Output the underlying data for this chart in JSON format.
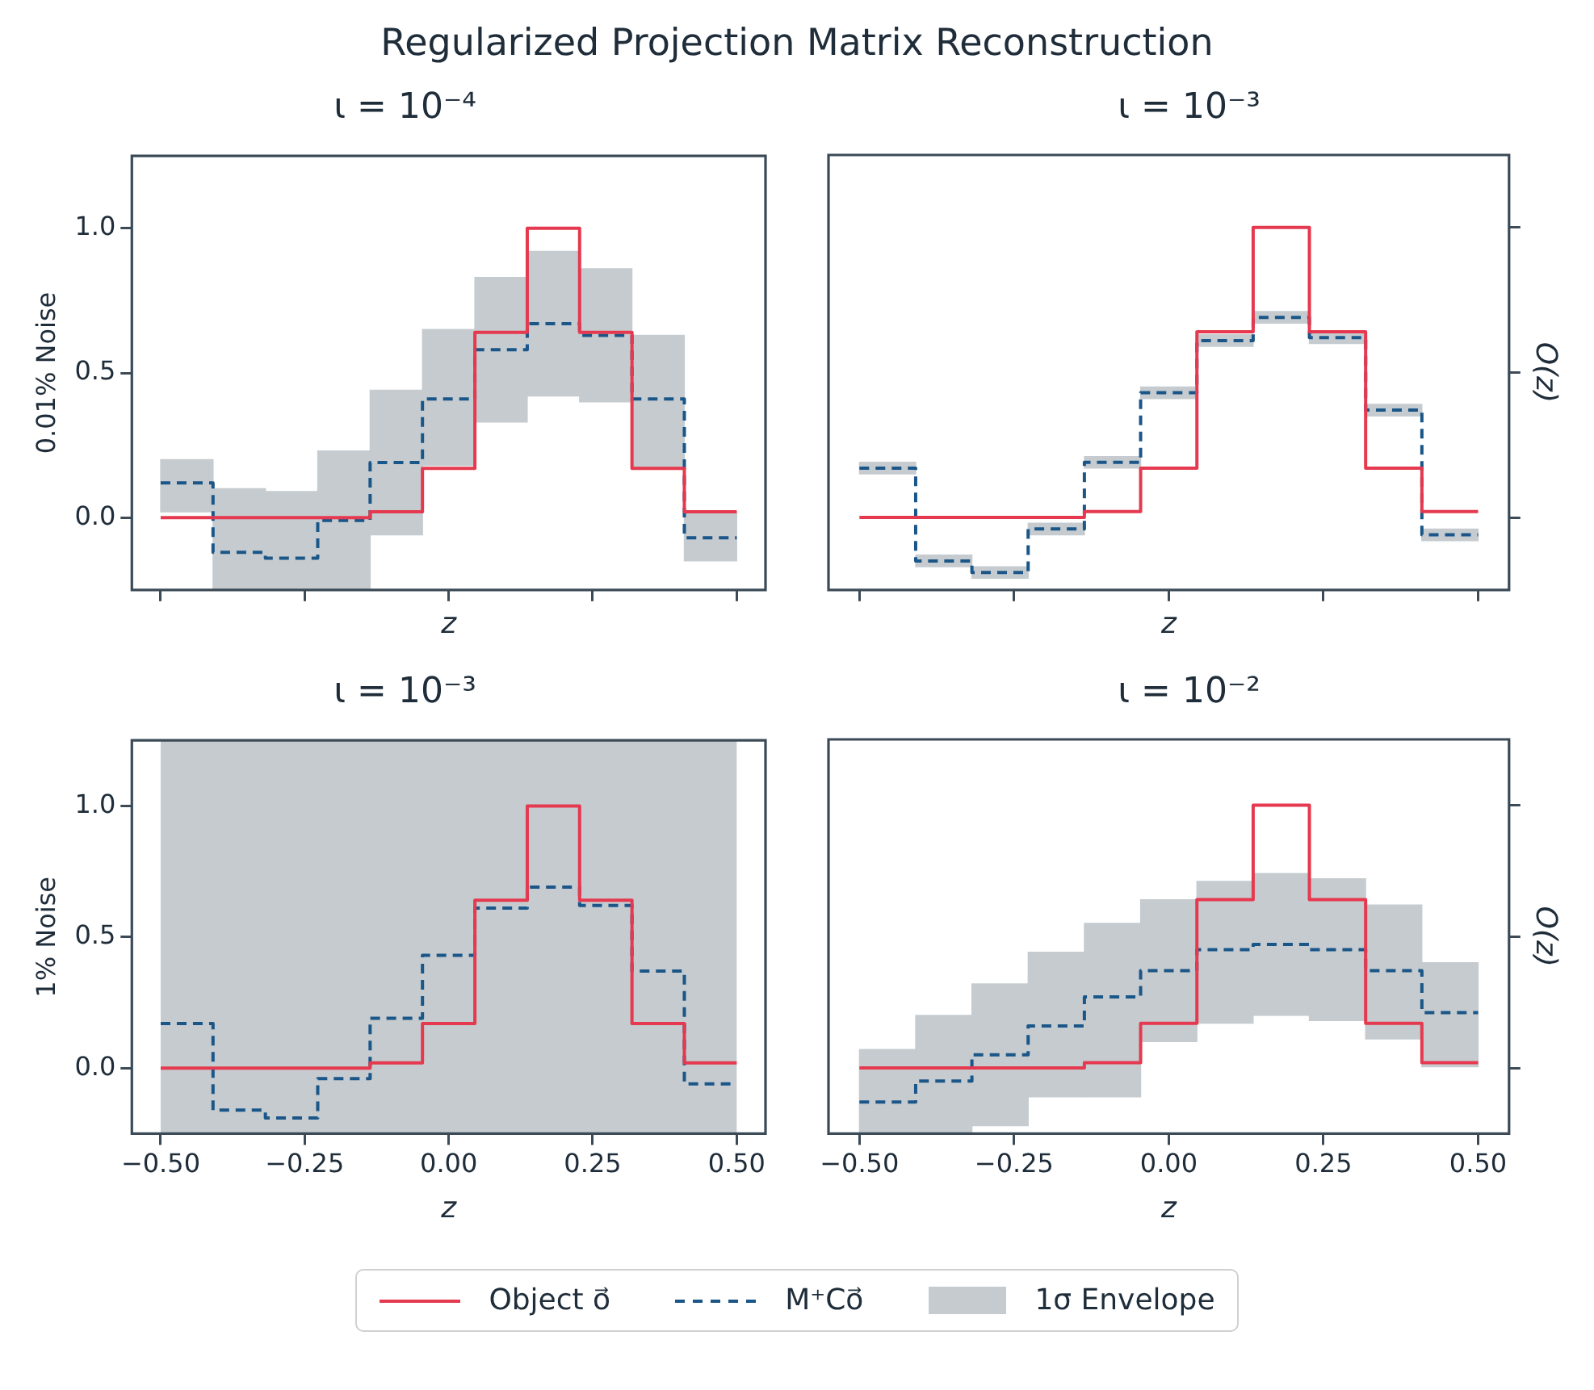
{
  "chart_data": [
    {
      "type": "histogram",
      "title": "ι = 10⁻⁴",
      "xlabel": "z",
      "ylabel": "0.01% Noise",
      "annotations": [
        "Regularized Projection Matrix Reconstruction"
      ],
      "tick_labels": "y",
      "grid": false,
      "bins": [
        -0.5,
        -0.4091,
        -0.3182,
        -0.2273,
        -0.1364,
        -0.0455,
        0.0455,
        0.1364,
        0.2273,
        0.3182,
        0.4091,
        0.5
      ],
      "xlim": [
        -0.55,
        0.55
      ],
      "xticks": [
        {
          "value": -0.5,
          "label": null
        },
        {
          "value": -0.25,
          "label": null
        },
        {
          "value": 0,
          "label": null
        },
        {
          "value": 0.25,
          "label": null
        },
        {
          "value": 0.5,
          "label": null
        }
      ],
      "ylim": [
        -0.25,
        1.25
      ],
      "yticks": [
        {
          "value": 0,
          "label": "0.0"
        },
        {
          "value": 0.5,
          "label": "0.5"
        },
        {
          "value": 1,
          "label": "1.0"
        }
      ],
      "series": [
        {
          "color": "#e5394f",
          "line_style": "solid",
          "values": [
            0,
            0,
            0,
            0,
            0.02,
            0.17,
            0.64,
            1.0,
            0.64,
            0.17,
            0.02
          ]
        },
        {
          "color": "#1a5688",
          "line_style": "dashed",
          "values": [
            0.12,
            -0.12,
            -0.14,
            -0.01,
            0.19,
            0.41,
            0.58,
            0.67,
            0.63,
            0.41,
            -0.07
          ]
        },
        {
          "type": "bar",
          "color": "#c5cbcf",
          "x": [
            -0.4545,
            -0.3636,
            -0.2727,
            -0.1818,
            -0.0909,
            0,
            0.0909,
            0.1818,
            0.2727,
            0.3636,
            0.4545
          ],
          "base": [
            0.02,
            -0.25,
            -0.25,
            -0.25,
            -0.06,
            0.18,
            0.33,
            0.42,
            0.4,
            0.17,
            -0.15
          ],
          "values": [
            0.18,
            0.35,
            0.34,
            0.48,
            0.5,
            0.47,
            0.5,
            0.5,
            0.46,
            0.46,
            0.17
          ]
        }
      ]
    },
    {
      "type": "histogram",
      "title": "ι = 10⁻³",
      "xlabel": "z",
      "ylabel": "O(z)",
      "tick_labels": false,
      "grid": false,
      "bins": [
        -0.5,
        -0.4091,
        -0.3182,
        -0.2273,
        -0.1364,
        -0.0455,
        0.0455,
        0.1364,
        0.2273,
        0.3182,
        0.4091,
        0.5
      ],
      "xlim": [
        -0.55,
        0.55
      ],
      "xticks": [
        {
          "value": -0.5,
          "label": null
        },
        {
          "value": -0.25,
          "label": null
        },
        {
          "value": 0,
          "label": null
        },
        {
          "value": 0.25,
          "label": null
        },
        {
          "value": 0.5,
          "label": null
        }
      ],
      "ylim": [
        -0.25,
        1.25
      ],
      "yticks": [
        {
          "value": 0,
          "label": null
        },
        {
          "value": 0.5,
          "label": null
        },
        {
          "value": 1,
          "label": null
        }
      ],
      "series": [
        {
          "color": "#e5394f",
          "line_style": "solid",
          "values": [
            0,
            0,
            0,
            0,
            0.02,
            0.17,
            0.64,
            1.0,
            0.64,
            0.17,
            0.02
          ]
        },
        {
          "color": "#1a5688",
          "line_style": "dashed",
          "values": [
            0.17,
            -0.15,
            -0.19,
            -0.04,
            0.19,
            0.43,
            0.61,
            0.69,
            0.62,
            0.37,
            -0.06
          ]
        },
        {
          "type": "bar",
          "color": "#c5cbcf",
          "x": [
            -0.4545,
            -0.3636,
            -0.2727,
            -0.1818,
            -0.0909,
            0,
            0.0909,
            0.1818,
            0.2727,
            0.3636,
            0.4545
          ],
          "base": [
            0.15,
            -0.17,
            -0.21,
            -0.06,
            0.17,
            0.41,
            0.59,
            0.67,
            0.6,
            0.35,
            -0.08
          ],
          "values": [
            0.04,
            0.04,
            0.04,
            0.04,
            0.04,
            0.04,
            0.04,
            0.04,
            0.04,
            0.04,
            0.04
          ]
        }
      ]
    },
    {
      "type": "histogram",
      "title": "ι = 10⁻³",
      "xlabel": "z",
      "ylabel": "1% Noise",
      "grid": false,
      "bins": [
        -0.5,
        -0.4091,
        -0.3182,
        -0.2273,
        -0.1364,
        -0.0455,
        0.0455,
        0.1364,
        0.2273,
        0.3182,
        0.4091,
        0.5
      ],
      "xlim": [
        -0.55,
        0.55
      ],
      "xticks": [
        {
          "value": -0.5,
          "label": "−0.50"
        },
        {
          "value": -0.25,
          "label": "−0.25"
        },
        {
          "value": 0,
          "label": "0.00"
        },
        {
          "value": 0.25,
          "label": "0.25"
        },
        {
          "value": 0.5,
          "label": "0.50"
        }
      ],
      "ylim": [
        -0.25,
        1.25
      ],
      "yticks": [
        {
          "value": 0,
          "label": "0.0"
        },
        {
          "value": 0.5,
          "label": "0.5"
        },
        {
          "value": 1,
          "label": "1.0"
        }
      ],
      "series": [
        {
          "color": "#e5394f",
          "line_style": "solid",
          "values": [
            0,
            0,
            0,
            0,
            0.02,
            0.17,
            0.64,
            1.0,
            0.64,
            0.17,
            0.02
          ]
        },
        {
          "color": "#1a5688",
          "line_style": "dashed",
          "values": [
            0.17,
            -0.16,
            -0.19,
            -0.04,
            0.19,
            0.43,
            0.61,
            0.69,
            0.62,
            0.37,
            -0.06
          ]
        }
      ],
      "bands": [
        {
          "axis": "x",
          "from": -0.5,
          "to": 0.5,
          "color": "#c5cbcf"
        }
      ]
    },
    {
      "type": "histogram",
      "title": "ι = 10⁻²",
      "xlabel": "z",
      "ylabel": "O(z)",
      "tick_labels": "x",
      "grid": false,
      "legend": "bottom",
      "bins": [
        -0.5,
        -0.4091,
        -0.3182,
        -0.2273,
        -0.1364,
        -0.0455,
        0.0455,
        0.1364,
        0.2273,
        0.3182,
        0.4091,
        0.5
      ],
      "xlim": [
        -0.55,
        0.55
      ],
      "xticks": [
        {
          "value": -0.5,
          "label": "−0.50"
        },
        {
          "value": -0.25,
          "label": "−0.25"
        },
        {
          "value": 0,
          "label": "0.00"
        },
        {
          "value": 0.25,
          "label": "0.25"
        },
        {
          "value": 0.5,
          "label": "0.50"
        }
      ],
      "ylim": [
        -0.25,
        1.25
      ],
      "yticks": [
        {
          "value": 0,
          "label": null
        },
        {
          "value": 0.5,
          "label": null
        },
        {
          "value": 1,
          "label": null
        }
      ],
      "series": [
        {
          "name": "Object o⃗",
          "color": "#e5394f",
          "line_style": "solid",
          "values": [
            0,
            0,
            0,
            0,
            0.02,
            0.17,
            0.64,
            1.0,
            0.64,
            0.17,
            0.02
          ]
        },
        {
          "name": "M⁺Co⃗",
          "color": "#1a5688",
          "line_style": "dashed",
          "values": [
            -0.13,
            -0.05,
            0.05,
            0.16,
            0.27,
            0.37,
            0.45,
            0.47,
            0.45,
            0.37,
            0.21
          ]
        },
        {
          "name": "1σ Envelope",
          "type": "bar",
          "color": "#c5cbcf",
          "x": [
            -0.4545,
            -0.3636,
            -0.2727,
            -0.1818,
            -0.0909,
            0,
            0.0909,
            0.1818,
            0.2727,
            0.3636,
            0.4545
          ],
          "base": [
            -0.25,
            -0.25,
            -0.22,
            -0.11,
            -0.11,
            0.1,
            0.17,
            0.2,
            0.18,
            0.11,
            0.0
          ],
          "values": [
            0.32,
            0.45,
            0.54,
            0.55,
            0.66,
            0.54,
            0.54,
            0.54,
            0.54,
            0.51,
            0.4
          ]
        }
      ]
    }
  ]
}
